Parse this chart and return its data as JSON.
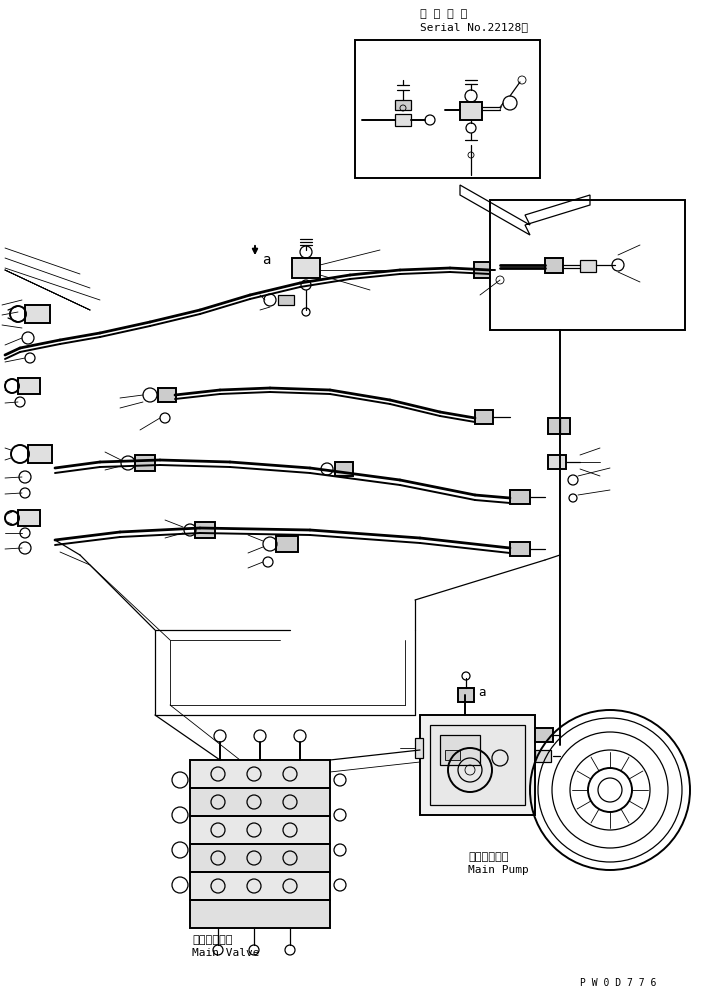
{
  "background_color": "#ffffff",
  "line_color": "#000000",
  "title_text1": "適 用 号 機",
  "title_text2": "Serial No.22128〜",
  "label_main_valve_jp": "メインバルブ",
  "label_main_valve_en": "Main Valve",
  "label_main_pump_jp": "メインポンプ",
  "label_main_pump_en": "Main Pump",
  "label_a": "a",
  "part_number": "P W 0 D 7 7 6",
  "figsize": [
    7.04,
    9.97
  ],
  "dpi": 100
}
